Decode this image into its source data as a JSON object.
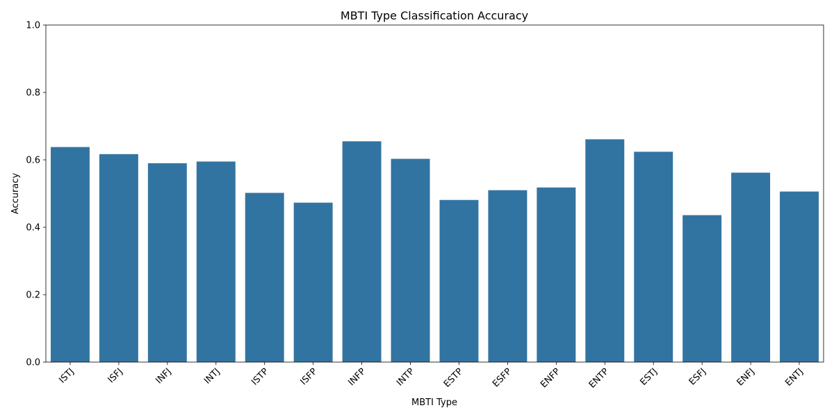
{
  "chart_data": {
    "type": "bar",
    "title": "MBTI Type Classification Accuracy",
    "xlabel": "MBTI Type",
    "ylabel": "Accuracy",
    "ylim": [
      0,
      1
    ],
    "yticks": [
      "0.0",
      "0.2",
      "0.4",
      "0.6",
      "0.8",
      "1.0"
    ],
    "x_tick_rotation": 45,
    "grid": false,
    "bar_color": "#3274a1",
    "categories": [
      "ISTJ",
      "ISFJ",
      "INFJ",
      "INTJ",
      "ISTP",
      "ISFP",
      "INFP",
      "INTP",
      "ESTP",
      "ESFP",
      "ENFP",
      "ENTP",
      "ESTJ",
      "ESFJ",
      "ENFJ",
      "ENTJ"
    ],
    "values": [
      0.638,
      0.617,
      0.59,
      0.595,
      0.502,
      0.473,
      0.655,
      0.603,
      0.481,
      0.51,
      0.518,
      0.661,
      0.624,
      0.436,
      0.562,
      0.506
    ]
  }
}
